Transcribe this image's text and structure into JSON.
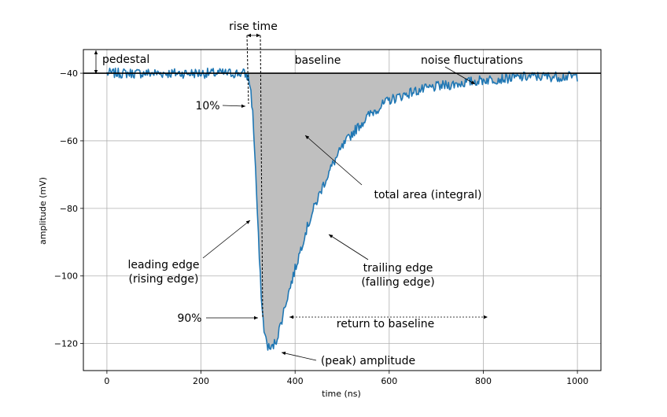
{
  "chart_data": {
    "type": "line",
    "title": "",
    "xlabel": "time (ns)",
    "ylabel": "amplitude (mV)",
    "xlim": [
      -50,
      1050
    ],
    "ylim": [
      -128,
      -33
    ],
    "xticks": [
      0,
      200,
      400,
      600,
      800,
      1000
    ],
    "yticks": [
      -40,
      -60,
      -80,
      -100,
      -120
    ],
    "xtick_labels": [
      "0",
      "200",
      "400",
      "600",
      "800",
      "1000"
    ],
    "ytick_labels": [
      "−40",
      "−60",
      "−80",
      "−100",
      "−120"
    ],
    "grid": true,
    "baseline": -40,
    "series": [
      {
        "color": "#1f77b4",
        "x": [
          0,
          50,
          100,
          150,
          200,
          250,
          290,
          300,
          305,
          310,
          315,
          320,
          325,
          330,
          335,
          340,
          345,
          350,
          360,
          370,
          380,
          400,
          420,
          440,
          460,
          480,
          500,
          520,
          540,
          560,
          580,
          600,
          650,
          700,
          750,
          800,
          850,
          900,
          950,
          1000
        ],
        "y": [
          -40,
          -40,
          -40,
          -40,
          -40,
          -40,
          -40,
          -41,
          -44,
          -52,
          -65,
          -82,
          -98,
          -110,
          -117,
          -120,
          -121.5,
          -121.5,
          -119,
          -114,
          -108,
          -98,
          -88,
          -80,
          -73,
          -67,
          -62,
          -58,
          -55,
          -52,
          -50,
          -48,
          -45.5,
          -44,
          -43,
          -42,
          -41.5,
          -41,
          -41,
          -41
        ]
      }
    ],
    "annotations": {
      "rise_time": "rise time",
      "pedestal": "pedestal",
      "baseline": "baseline",
      "noise": "noise flucturations",
      "ten_percent": "10%",
      "ninety_percent": "90%",
      "total_area": "total area (integral)",
      "leading_edge_1": "leading edge",
      "leading_edge_2": "(rising edge)",
      "trailing_edge_1": "trailing edge",
      "trailing_edge_2": "(falling edge)",
      "return_to_baseline": "return to baseline",
      "peak": "(peak) amplitude"
    },
    "colors": {
      "line": "#1f77b4",
      "fill": "#bfbfbf",
      "grid": "#b0b0b0"
    }
  }
}
